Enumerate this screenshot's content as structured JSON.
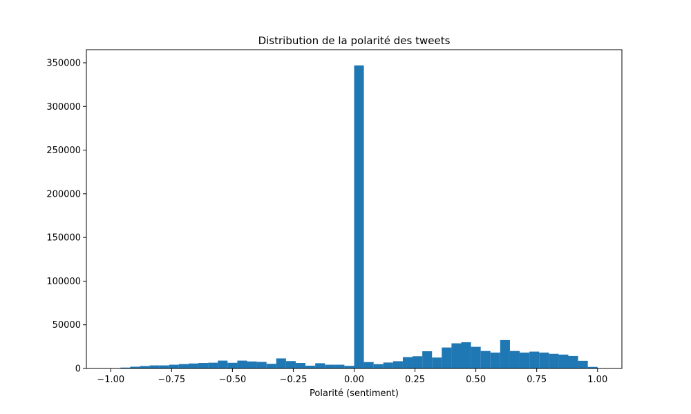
{
  "chart_data": {
    "type": "bar",
    "title": "Distribution de la polarité des tweets",
    "xlabel": "Polarité (sentiment)",
    "ylabel": "",
    "xlim": [
      -1.1,
      1.1
    ],
    "ylim": [
      0,
      365000
    ],
    "grid": false,
    "bar_color": "#1f77b4",
    "bin_edges": [
      -1.0,
      -0.96,
      -0.92,
      -0.88,
      -0.84,
      -0.8,
      -0.76,
      -0.72,
      -0.68,
      -0.64,
      -0.6,
      -0.56,
      -0.52,
      -0.48,
      -0.44,
      -0.4,
      -0.36,
      -0.32,
      -0.28,
      -0.24,
      -0.2,
      -0.16,
      -0.12,
      -0.08,
      -0.04,
      0.0,
      0.04,
      0.08,
      0.12,
      0.16,
      0.2,
      0.24,
      0.28,
      0.32,
      0.36,
      0.4,
      0.44,
      0.48,
      0.52,
      0.56,
      0.6,
      0.64,
      0.68,
      0.72,
      0.76,
      0.8,
      0.84,
      0.88,
      0.92,
      0.96,
      1.0
    ],
    "values": [
      300,
      1000,
      2000,
      2800,
      3500,
      3500,
      4300,
      5000,
      5700,
      6300,
      6600,
      9000,
      6500,
      9000,
      8000,
      7500,
      5300,
      11500,
      8500,
      6300,
      3200,
      6000,
      4300,
      4300,
      3000,
      347000,
      7300,
      4900,
      6800,
      8300,
      13000,
      14000,
      19700,
      12500,
      24000,
      28800,
      30000,
      24800,
      20000,
      18200,
      32500,
      20000,
      18200,
      19300,
      18200,
      16800,
      15900,
      14300,
      8800,
      1800
    ],
    "x_ticks": [
      -1.0,
      -0.75,
      -0.5,
      -0.25,
      0.0,
      0.25,
      0.5,
      0.75,
      1.0
    ],
    "x_tick_labels": [
      "−1.00",
      "−0.75",
      "−0.50",
      "−0.25",
      "0.00",
      "0.25",
      "0.50",
      "0.75",
      "1.00"
    ],
    "y_ticks": [
      0,
      50000,
      100000,
      150000,
      200000,
      250000,
      300000,
      350000
    ],
    "y_tick_labels": [
      "0",
      "50000",
      "100000",
      "150000",
      "200000",
      "250000",
      "300000",
      "350000"
    ]
  }
}
